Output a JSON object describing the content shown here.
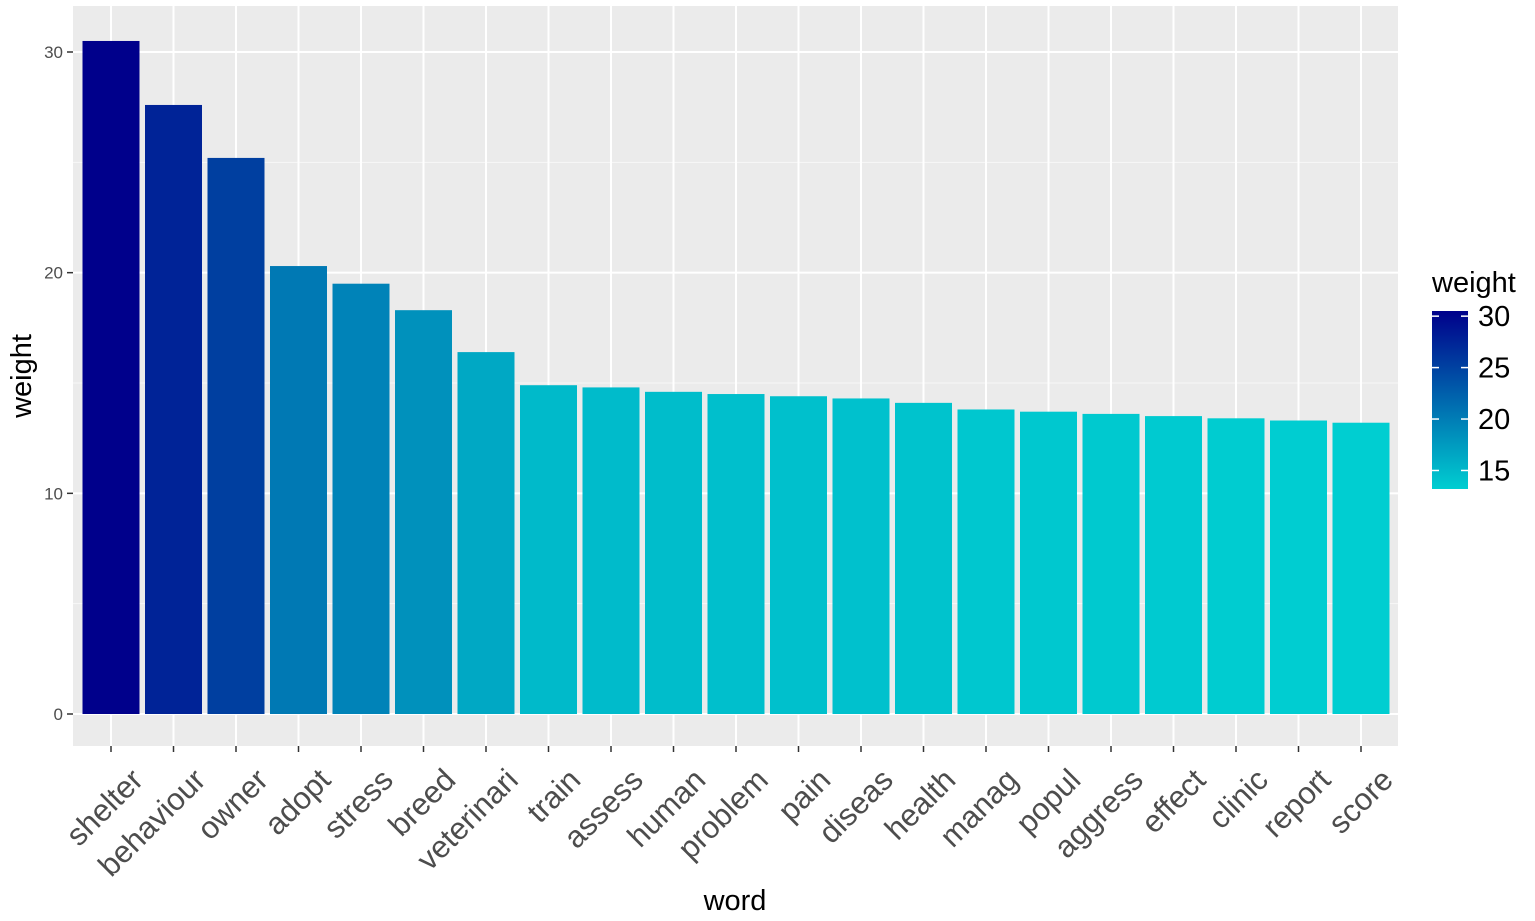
{
  "chart_data": {
    "type": "bar",
    "xlabel": "word",
    "ylabel": "weight",
    "ylim": [
      0,
      31.5
    ],
    "yticks": [
      0,
      10,
      20,
      30
    ],
    "grid": true,
    "categories": [
      "shelter",
      "behaviour",
      "owner",
      "adopt",
      "stress",
      "breed",
      "veterinari",
      "train",
      "assess",
      "human",
      "problem",
      "pain",
      "diseas",
      "health",
      "manag",
      "popul",
      "aggress",
      "effect",
      "clinic",
      "report",
      "score"
    ],
    "values": [
      30.5,
      27.6,
      25.2,
      20.3,
      19.5,
      18.3,
      16.4,
      14.9,
      14.8,
      14.6,
      14.5,
      14.4,
      14.3,
      14.1,
      13.8,
      13.7,
      13.6,
      13.5,
      13.4,
      13.3,
      13.2
    ],
    "legend": {
      "title": "weight",
      "position": "right",
      "ticks": [
        30,
        25,
        20,
        15
      ],
      "low_color": "#00CED1",
      "high_color": "#00008B"
    },
    "colors": {
      "panel_background": "#EBEBEB",
      "grid_major": "#FFFFFF"
    }
  }
}
